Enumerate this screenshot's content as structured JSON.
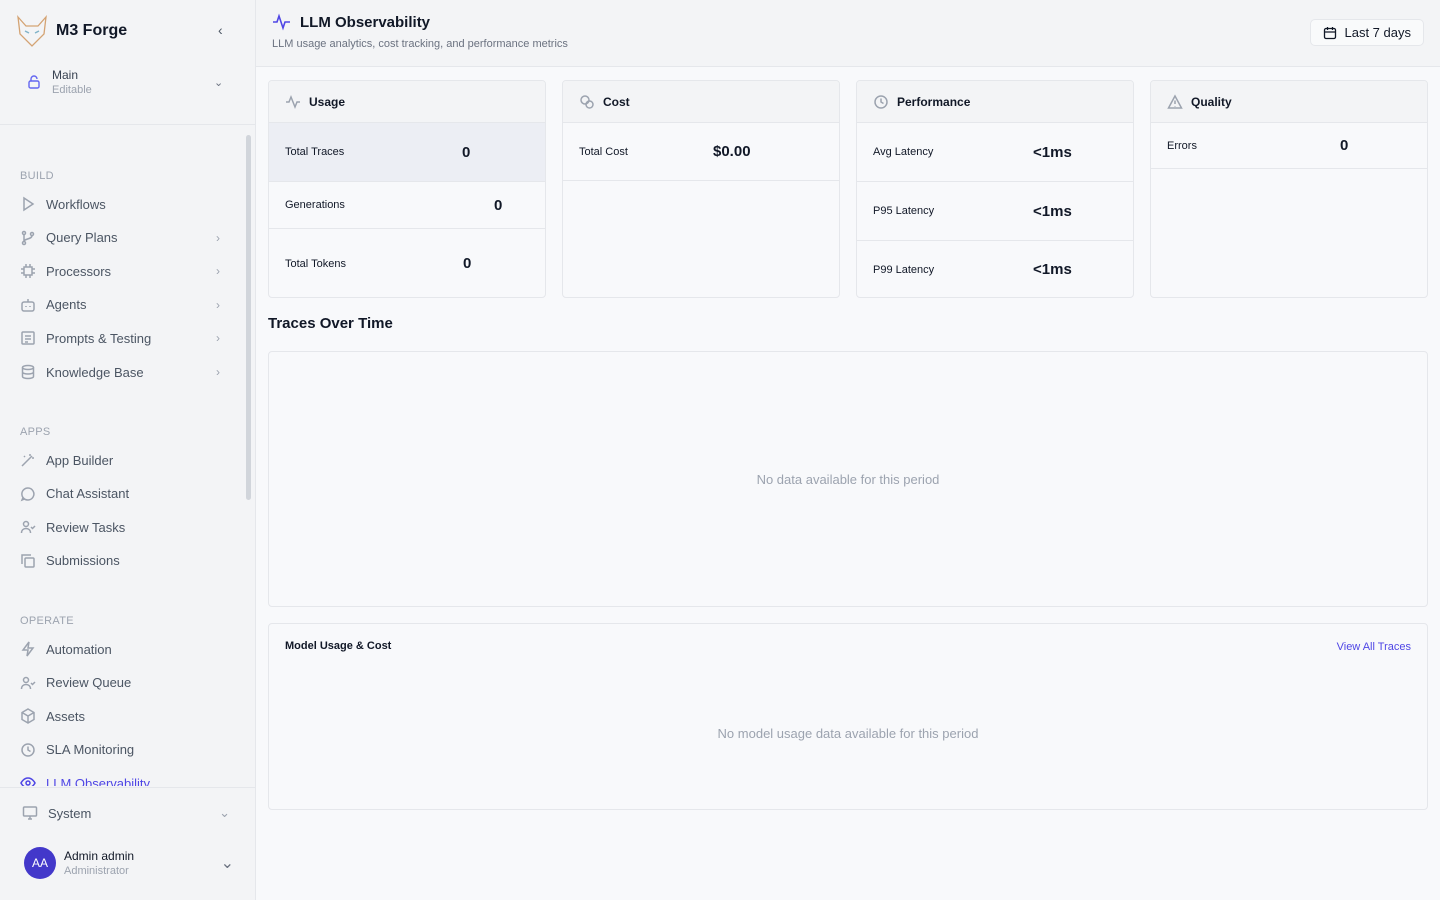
{
  "app": {
    "name": "M3 Forge"
  },
  "workspace": {
    "name": "Main",
    "mode": "Editable"
  },
  "sidebar": {
    "sections": [
      {
        "label": "BUILD",
        "items": [
          {
            "label": "Workflows",
            "icon": "play-icon"
          },
          {
            "label": "Query Plans",
            "icon": "git-branch-icon",
            "chevron": true
          },
          {
            "label": "Processors",
            "icon": "cpu-icon",
            "chevron": true
          },
          {
            "label": "Agents",
            "icon": "bot-icon",
            "chevron": true
          },
          {
            "label": "Prompts & Testing",
            "icon": "file-text-icon",
            "chevron": true
          },
          {
            "label": "Knowledge Base",
            "icon": "database-icon",
            "chevron": true
          }
        ]
      },
      {
        "label": "APPS",
        "items": [
          {
            "label": "App Builder",
            "icon": "wand-icon"
          },
          {
            "label": "Chat Assistant",
            "icon": "message-circle-icon"
          },
          {
            "label": "Review Tasks",
            "icon": "user-check-icon"
          },
          {
            "label": "Submissions",
            "icon": "copy-icon"
          }
        ]
      },
      {
        "label": "OPERATE",
        "items": [
          {
            "label": "Automation",
            "icon": "zap-icon"
          },
          {
            "label": "Review Queue",
            "icon": "user-check-icon"
          },
          {
            "label": "Assets",
            "icon": "package-icon"
          },
          {
            "label": "SLA Monitoring",
            "icon": "clock-icon"
          },
          {
            "label": "LLM Observability",
            "icon": "eye-icon",
            "active": true
          }
        ]
      }
    ],
    "system": "System",
    "user": {
      "initials": "AA",
      "name": "Admin admin",
      "role": "Administrator"
    }
  },
  "header": {
    "title": "LLM Observability",
    "subtitle": "LLM usage analytics, cost tracking, and performance metrics",
    "date_range": "Last 7 days"
  },
  "cards": {
    "usage": {
      "title": "Usage",
      "rows": [
        {
          "label": "Total Traces",
          "value": "0"
        },
        {
          "label": "Generations",
          "value": "0"
        },
        {
          "label": "Total Tokens",
          "value": "0"
        }
      ]
    },
    "cost": {
      "title": "Cost",
      "rows": [
        {
          "label": "Total Cost",
          "value": "$0.00"
        }
      ]
    },
    "performance": {
      "title": "Performance",
      "rows": [
        {
          "label": "Avg Latency",
          "value": "<1ms"
        },
        {
          "label": "P95 Latency",
          "value": "<1ms"
        },
        {
          "label": "P99 Latency",
          "value": "<1ms"
        }
      ]
    },
    "quality": {
      "title": "Quality",
      "rows": [
        {
          "label": "Errors",
          "value": "0"
        }
      ]
    }
  },
  "traces": {
    "title": "Traces Over Time",
    "empty": "No data available for this period"
  },
  "models": {
    "title": "Model Usage & Cost",
    "link": "View All Traces",
    "empty": "No model usage data available for this period"
  },
  "colors": {
    "accent": "#4f46e5"
  }
}
